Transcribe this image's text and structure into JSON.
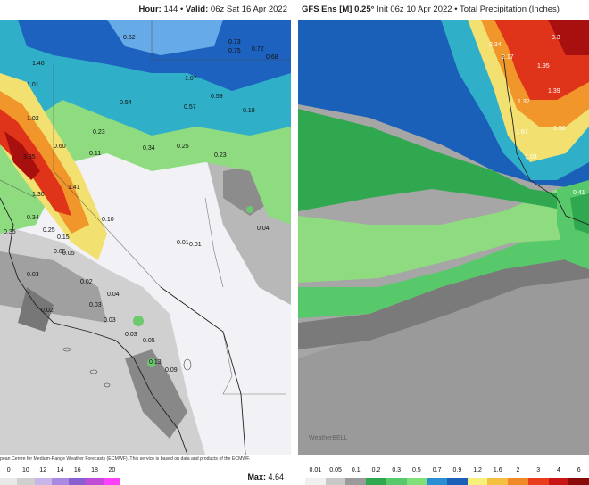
{
  "left_panel": {
    "header_hour_label": "Hour:",
    "header_hour": "144",
    "header_valid_label": "Valid:",
    "header_valid": "06z Sat 16 Apr 2022",
    "credit": "pean Centre for Medium-Range Weather Forecasts (ECMWF). This service is based on data and products of the ECMWF.",
    "max_label": "Max:",
    "max_value": "4.64",
    "legend_ticks": [
      "0",
      "10",
      "12",
      "14",
      "16",
      "18",
      "20"
    ],
    "legend_colors": [
      "#e8e8e8",
      "#cfcfcf",
      "#c9b6e8",
      "#a98ae0",
      "#8a5fd0",
      "#c04cd8",
      "#ff40ff"
    ],
    "map_labels": [
      {
        "t": "0.62"
      },
      {
        "t": "0.73"
      },
      {
        "t": "0.75"
      },
      {
        "t": "0.72"
      },
      {
        "t": "0.68"
      },
      {
        "t": "1.40"
      },
      {
        "t": "1.01"
      },
      {
        "t": "1.07"
      },
      {
        "t": "0.59"
      },
      {
        "t": "0.54"
      },
      {
        "t": "0.57"
      },
      {
        "t": "0.19"
      },
      {
        "t": "1.02"
      },
      {
        "t": "0.23"
      },
      {
        "t": "0.60"
      },
      {
        "t": "0.34"
      },
      {
        "t": "0.25"
      },
      {
        "t": "0.23"
      },
      {
        "t": "3.35"
      },
      {
        "t": "0.11"
      },
      {
        "t": "1.41"
      },
      {
        "t": "1.30"
      },
      {
        "t": "0.34"
      },
      {
        "t": "0.25"
      },
      {
        "t": "0.10"
      },
      {
        "t": "0.15"
      },
      {
        "t": "0.35"
      },
      {
        "t": "0.05"
      },
      {
        "t": "0.05"
      },
      {
        "t": "0.03"
      },
      {
        "t": "0.02"
      },
      {
        "t": "0.04"
      },
      {
        "t": "0.03"
      },
      {
        "t": "0.02"
      },
      {
        "t": "0.03"
      },
      {
        "t": "0.03"
      },
      {
        "t": "0.05"
      },
      {
        "t": "0.13"
      },
      {
        "t": "0.01"
      },
      {
        "t": "0.01"
      },
      {
        "t": "0.04"
      },
      {
        "t": "0.09"
      }
    ]
  },
  "right_panel": {
    "header_model": "GFS Ens [M] 0.25°",
    "header_init": "Init 06z 10 Apr 2022",
    "header_sep": "•",
    "header_product": "Total Precipitation (Inches)",
    "watermark": "WeatherBELL",
    "legend_ticks": [
      "0.01",
      "0.05",
      "0.1",
      "0.2",
      "0.3",
      "0.5",
      "0.7",
      "0.9",
      "1.2",
      "1.6",
      "2",
      "3",
      "4",
      "6"
    ],
    "legend_colors": [
      "#f0f0f0",
      "#c8c8c8",
      "#9b9b9b",
      "#2fa84f",
      "#58c96a",
      "#7fe07a",
      "#2a8fd0",
      "#1a5fb8",
      "#f5f07a",
      "#f5c040",
      "#f08a28",
      "#e83c1c",
      "#c81414",
      "#8a0a0a"
    ],
    "map_labels": [
      {
        "t": "2.34"
      },
      {
        "t": "2.17"
      },
      {
        "t": "1.95"
      },
      {
        "t": "3.3"
      },
      {
        "t": "1.39"
      },
      {
        "t": "1.32"
      },
      {
        "t": "1.67"
      },
      {
        "t": "1.03"
      },
      {
        "t": "0.50"
      },
      {
        "t": "0.41"
      }
    ]
  }
}
